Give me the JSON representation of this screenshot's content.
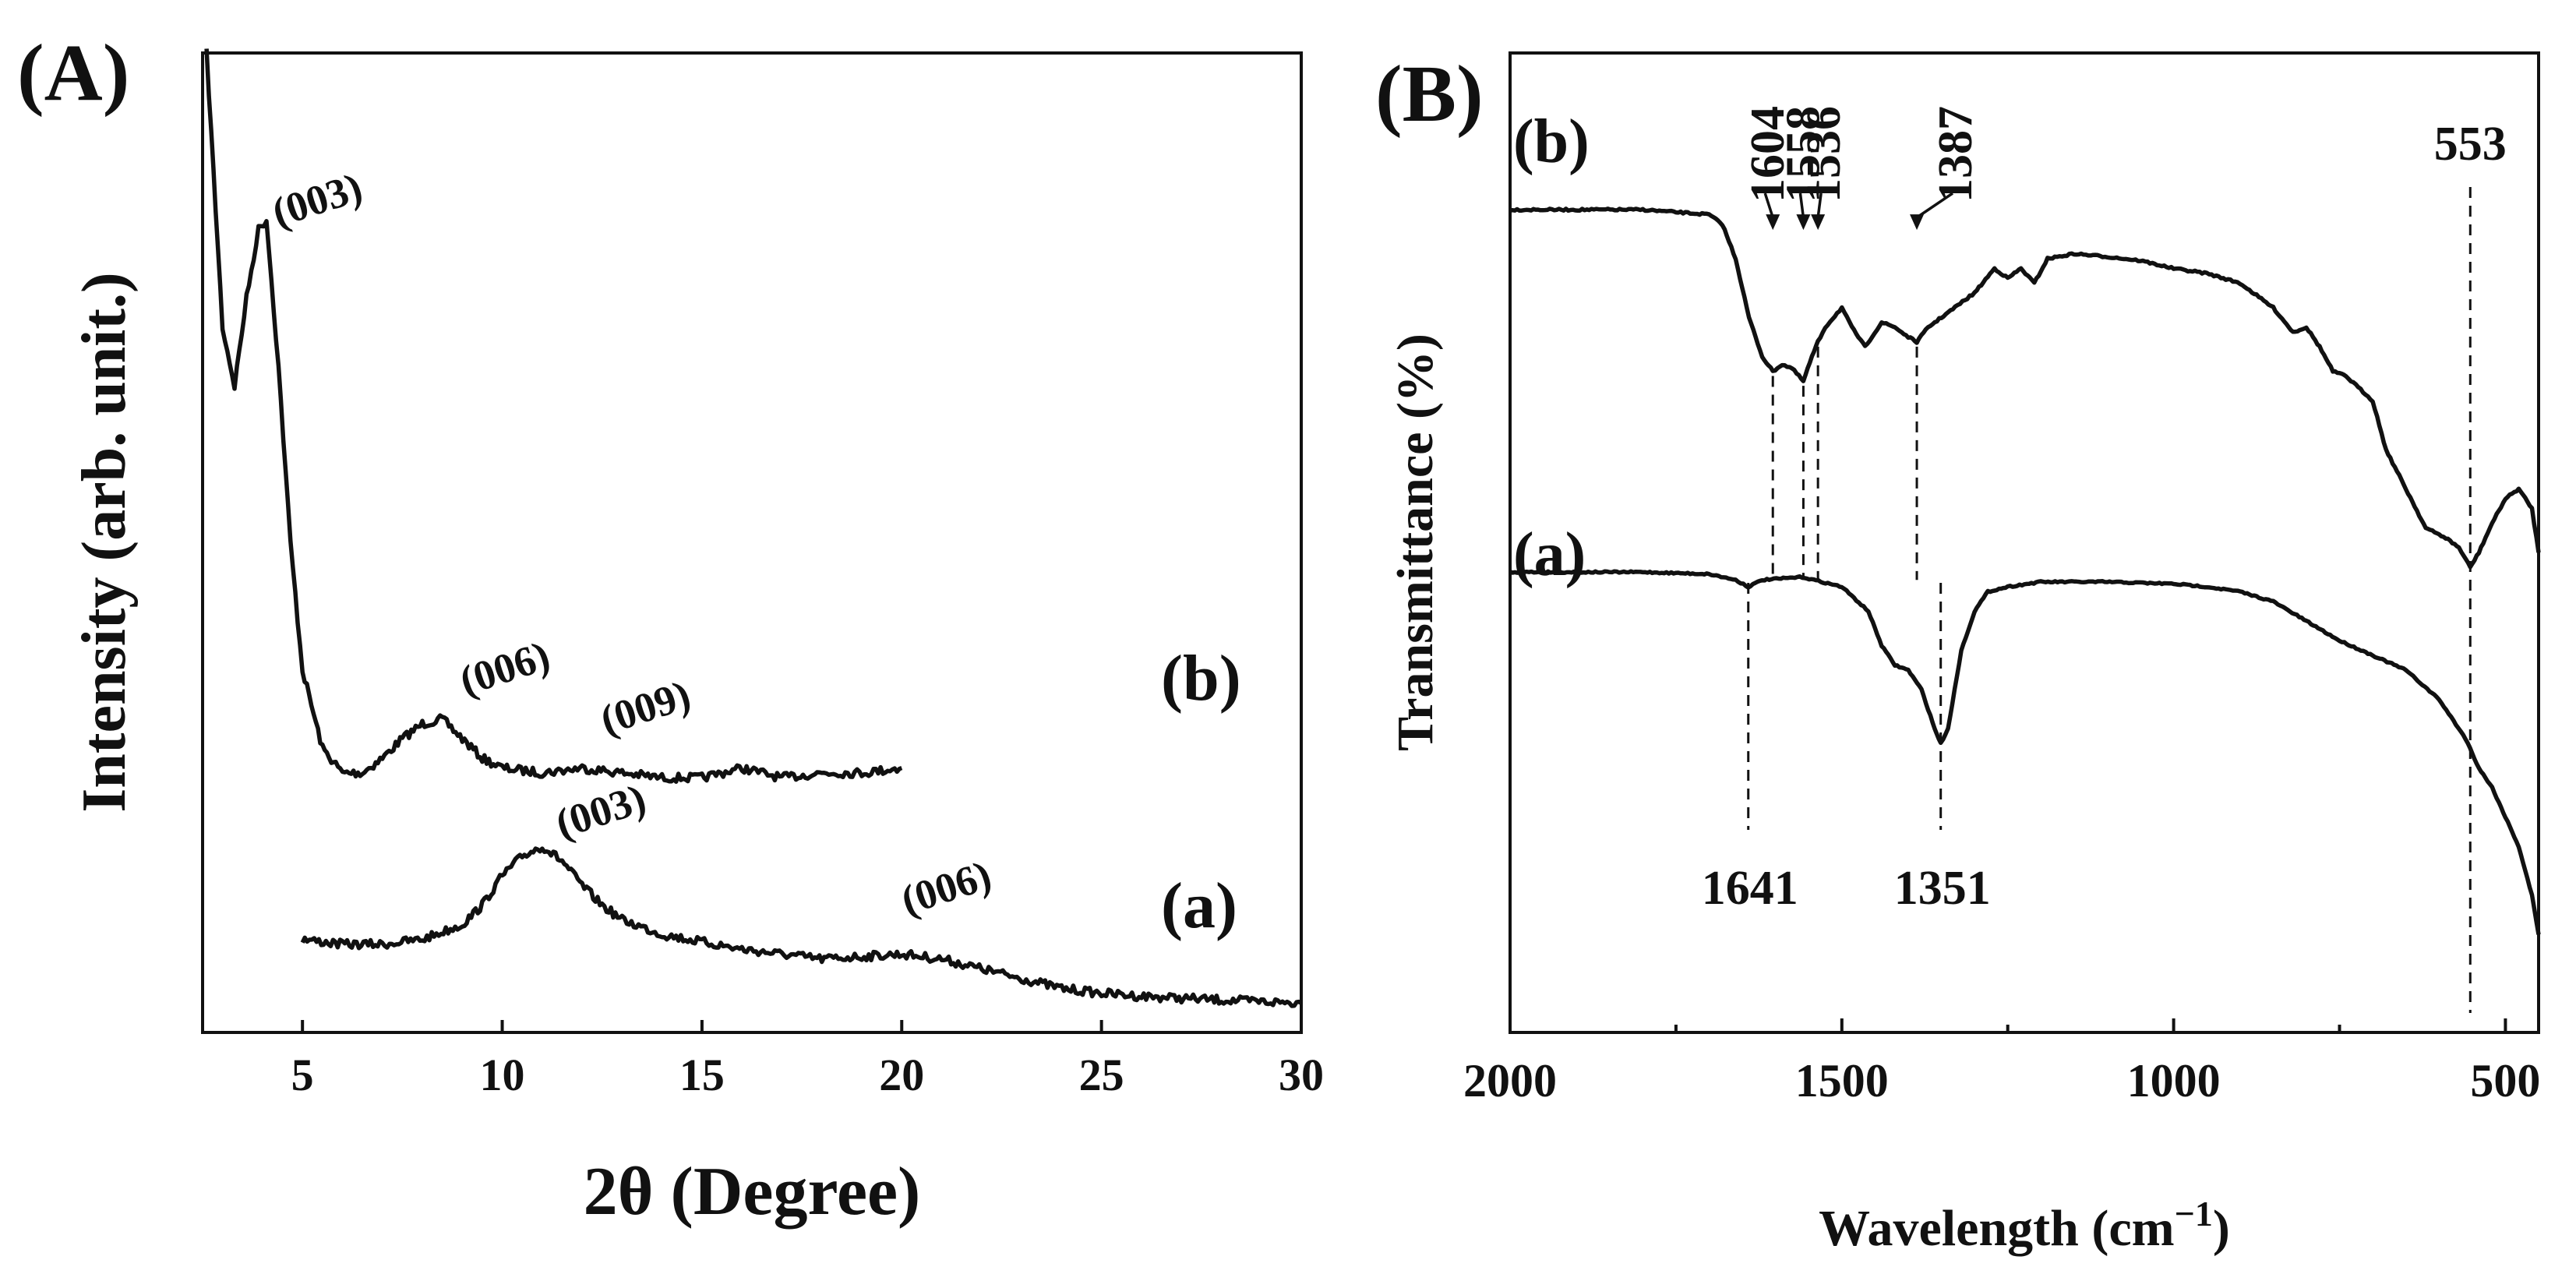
{
  "chart_data": [
    {
      "panel": "(A)",
      "type": "line",
      "xlabel": "2θ (Degree)",
      "ylabel": "Intensity (arb. unit.)",
      "xlim": [
        2.5,
        30
      ],
      "ylim": [
        0,
        1
      ],
      "xticks": [
        5,
        10,
        15,
        20,
        25,
        30
      ],
      "yticks": [],
      "series": [
        {
          "name": "(b)",
          "x": [
            2.6,
            3.0,
            3.3,
            3.6,
            3.9,
            4.1,
            4.4,
            4.7,
            5.0,
            5.5,
            6.0,
            6.5,
            7.0,
            7.5,
            8.0,
            8.5,
            9.0,
            9.5,
            10.0,
            11.0,
            12.0,
            13.0,
            14.0,
            15.0,
            16.0,
            17.0,
            18.0,
            19.0,
            20.0
          ],
          "values": [
            1.0,
            0.72,
            0.66,
            0.75,
            0.82,
            0.83,
            0.68,
            0.5,
            0.37,
            0.29,
            0.265,
            0.265,
            0.28,
            0.3,
            0.315,
            0.32,
            0.3,
            0.28,
            0.27,
            0.265,
            0.27,
            0.265,
            0.26,
            0.26,
            0.27,
            0.26,
            0.265,
            0.265,
            0.27
          ],
          "peaks": [
            {
              "label": "(003)",
              "x": 4.0
            },
            {
              "label": "(006)",
              "x": 8.5
            },
            {
              "label": "(009)",
              "x": 12.8
            }
          ]
        },
        {
          "name": "(a)",
          "x": [
            5.0,
            6.0,
            7.0,
            8.0,
            9.0,
            9.5,
            10.0,
            10.5,
            11.0,
            11.5,
            12.0,
            12.5,
            13.0,
            14.0,
            16.0,
            18.0,
            20.0,
            21.0,
            22.0,
            23.0,
            24.0,
            25.0,
            26.0,
            28.0,
            30.0
          ],
          "values": [
            0.095,
            0.09,
            0.09,
            0.095,
            0.11,
            0.13,
            0.16,
            0.18,
            0.19,
            0.175,
            0.15,
            0.13,
            0.115,
            0.1,
            0.085,
            0.075,
            0.08,
            0.075,
            0.065,
            0.055,
            0.045,
            0.04,
            0.037,
            0.033,
            0.03
          ],
          "peaks": [
            {
              "label": "(003)",
              "x": 11.0
            },
            {
              "label": "(006)",
              "x": 21.5
            }
          ]
        }
      ],
      "curve_labels": [
        "(b)",
        "(a)"
      ]
    },
    {
      "panel": "(B)",
      "type": "line",
      "xlabel": "Wavelength (cm",
      "xlabel_sup": "−1",
      "xlabel_close": ")",
      "ylabel": "Transmittance (%)",
      "xlim": [
        2000,
        450
      ],
      "ylim": [
        0,
        1
      ],
      "xticks": [
        2000,
        1500,
        1000,
        500
      ],
      "xticks_minor": [
        1750,
        1250,
        750
      ],
      "yticks": [],
      "series": [
        {
          "name": "(b)",
          "x": [
            2000,
            1800,
            1700,
            1680,
            1660,
            1640,
            1620,
            1604,
            1590,
            1575,
            1558,
            1545,
            1536,
            1525,
            1500,
            1485,
            1465,
            1440,
            1420,
            1400,
            1387,
            1370,
            1340,
            1300,
            1270,
            1250,
            1230,
            1210,
            1190,
            1150,
            1100,
            1050,
            1000,
            950,
            900,
            850,
            820,
            800,
            780,
            760,
            740,
            700,
            680,
            650,
            620,
            590,
            570,
            553,
            540,
            520,
            500,
            480,
            460,
            450
          ],
          "values": [
            0.84,
            0.84,
            0.835,
            0.825,
            0.79,
            0.73,
            0.69,
            0.675,
            0.682,
            0.678,
            0.665,
            0.69,
            0.705,
            0.72,
            0.74,
            0.72,
            0.7,
            0.725,
            0.72,
            0.71,
            0.705,
            0.72,
            0.735,
            0.755,
            0.78,
            0.77,
            0.78,
            0.765,
            0.79,
            0.795,
            0.792,
            0.788,
            0.78,
            0.775,
            0.765,
            0.74,
            0.715,
            0.72,
            0.7,
            0.675,
            0.67,
            0.645,
            0.595,
            0.555,
            0.515,
            0.505,
            0.495,
            0.475,
            0.49,
            0.52,
            0.545,
            0.555,
            0.535,
            0.49
          ]
        },
        {
          "name": "(a)",
          "x": [
            2000,
            1900,
            1800,
            1700,
            1660,
            1641,
            1620,
            1560,
            1500,
            1460,
            1440,
            1420,
            1400,
            1380,
            1360,
            1351,
            1340,
            1320,
            1300,
            1280,
            1250,
            1200,
            1100,
            1000,
            950,
            900,
            850,
            800,
            750,
            700,
            650,
            600,
            560,
            540,
            520,
            500,
            480,
            460,
            450
          ],
          "values": [
            0.47,
            0.47,
            0.47,
            0.468,
            0.462,
            0.455,
            0.462,
            0.465,
            0.455,
            0.43,
            0.395,
            0.375,
            0.37,
            0.35,
            0.31,
            0.295,
            0.31,
            0.39,
            0.43,
            0.45,
            0.455,
            0.46,
            0.46,
            0.458,
            0.455,
            0.45,
            0.44,
            0.42,
            0.4,
            0.385,
            0.37,
            0.34,
            0.3,
            0.27,
            0.25,
            0.22,
            0.19,
            0.14,
            0.1
          ]
        }
      ],
      "curve_labels": [
        "(b)",
        "(a)"
      ],
      "annotations_top": [
        "1604",
        "1558",
        "1536",
        "1387"
      ],
      "annotations_top_x": [
        1604,
        1558,
        1536,
        1387
      ],
      "annotation_553": "553",
      "annotation_553_x": 553,
      "annotations_bottom": [
        "1641",
        "1351"
      ],
      "annotations_bottom_x": [
        1641,
        1351
      ]
    }
  ]
}
